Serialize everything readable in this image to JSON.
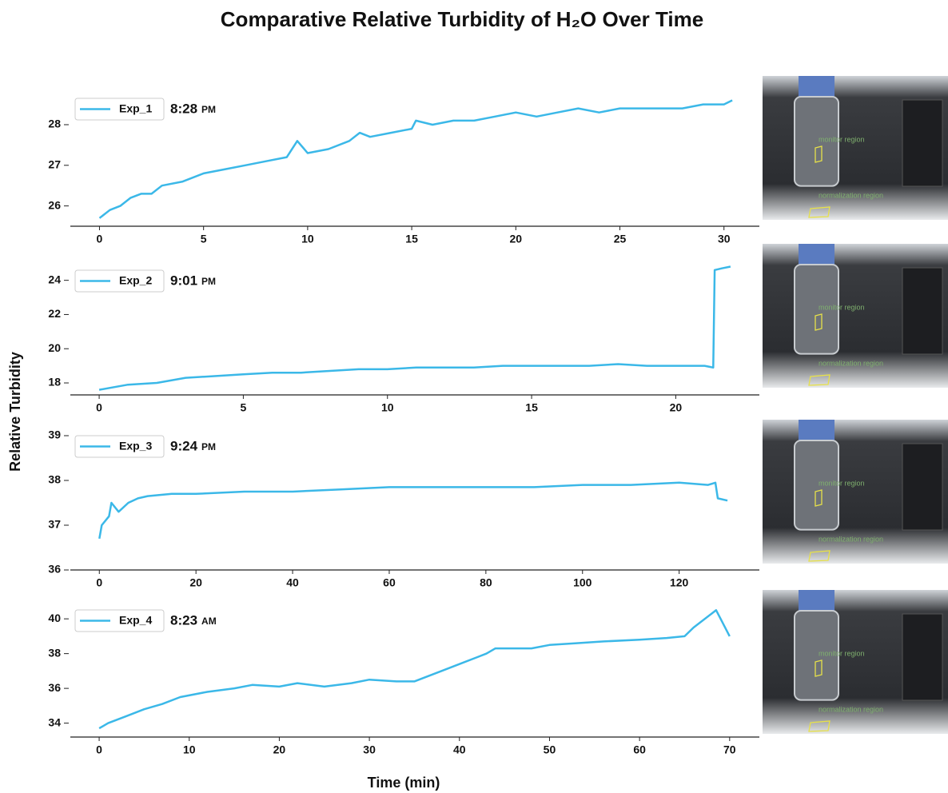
{
  "title": "Comparative Relative Turbidity of H₂O Over Time",
  "xlabel": "Time (min)",
  "ylabel": "Relative Turbidity",
  "photo_labels": {
    "monitor": "monitor region",
    "normalization": "normalization region"
  },
  "chart_data": [
    {
      "type": "line",
      "legend": "upper left",
      "time": "8:28",
      "period": "PM",
      "x": [
        0,
        0.5,
        1,
        1.5,
        2,
        2.5,
        3,
        4,
        5,
        6,
        7,
        8,
        9,
        9.5,
        10,
        11,
        12,
        12.5,
        13,
        14,
        15,
        15.2,
        16,
        17,
        18,
        19,
        20,
        21,
        22,
        23,
        24,
        25,
        26,
        27,
        28,
        29,
        30,
        30.4
      ],
      "series": [
        {
          "name": "Exp_1",
          "color": "#3bb8e8",
          "values": [
            25.7,
            25.9,
            26.0,
            26.2,
            26.3,
            26.3,
            26.5,
            26.6,
            26.8,
            26.9,
            27.0,
            27.1,
            27.2,
            27.6,
            27.3,
            27.4,
            27.6,
            27.8,
            27.7,
            27.8,
            27.9,
            28.1,
            28.0,
            28.1,
            28.1,
            28.2,
            28.3,
            28.2,
            28.3,
            28.4,
            28.3,
            28.4,
            28.4,
            28.4,
            28.4,
            28.5,
            28.5,
            28.6
          ]
        }
      ],
      "xlim": [
        -1.4,
        31.7
      ],
      "ylim": [
        25.5,
        29.2
      ],
      "xticks": [
        0,
        5,
        10,
        15,
        20,
        25,
        30
      ],
      "yticks": [
        26,
        27,
        28
      ]
    },
    {
      "type": "line",
      "legend": "upper left",
      "time": "9:01",
      "period": "PM",
      "x": [
        0,
        1,
        2,
        3,
        4,
        5,
        6,
        7,
        8,
        9,
        10,
        11,
        12,
        13,
        14,
        15,
        16,
        17,
        18,
        19,
        20,
        21,
        21.3,
        21.35,
        21.6,
        21.9
      ],
      "series": [
        {
          "name": "Exp_2",
          "color": "#3bb8e8",
          "values": [
            17.6,
            17.9,
            18.0,
            18.3,
            18.4,
            18.5,
            18.6,
            18.6,
            18.7,
            18.8,
            18.8,
            18.9,
            18.9,
            18.9,
            19.0,
            19.0,
            19.0,
            19.0,
            19.1,
            19.0,
            19.0,
            19.0,
            18.9,
            24.6,
            24.7,
            24.8
          ]
        }
      ],
      "xlim": [
        -1.0,
        22.9
      ],
      "ylim": [
        17.3,
        25.9
      ],
      "xticks": [
        0,
        5,
        10,
        15,
        20
      ],
      "yticks": [
        18,
        20,
        22,
        24
      ]
    },
    {
      "type": "line",
      "legend": "upper left",
      "time": "9:24",
      "period": "PM",
      "x": [
        0,
        0.5,
        2,
        2.5,
        4,
        6,
        8,
        10,
        15,
        20,
        30,
        40,
        50,
        60,
        70,
        80,
        90,
        100,
        110,
        120,
        126,
        127.5,
        128,
        130
      ],
      "series": [
        {
          "name": "Exp_3",
          "color": "#3bb8e8",
          "values": [
            36.7,
            37.0,
            37.2,
            37.5,
            37.3,
            37.5,
            37.6,
            37.65,
            37.7,
            37.7,
            37.75,
            37.75,
            37.8,
            37.85,
            37.85,
            37.85,
            37.85,
            37.9,
            37.9,
            37.95,
            37.9,
            37.95,
            37.6,
            37.55
          ]
        }
      ],
      "xlim": [
        -6,
        136.6
      ],
      "ylim": [
        36,
        39.5
      ],
      "xticks": [
        0,
        20,
        40,
        60,
        80,
        100,
        120
      ],
      "yticks": [
        36,
        37,
        38,
        39
      ]
    },
    {
      "type": "line",
      "legend": "upper left",
      "time": "8:23",
      "period": "AM",
      "x": [
        0,
        1,
        3,
        5,
        7,
        9,
        12,
        15,
        17,
        20,
        22,
        25,
        28,
        30,
        33,
        35,
        38,
        40,
        42,
        43,
        44,
        46,
        48,
        50,
        53,
        56,
        60,
        63,
        65,
        66,
        68,
        68.5,
        69,
        70
      ],
      "series": [
        {
          "name": "Exp_4",
          "color": "#3bb8e8",
          "values": [
            33.7,
            34.0,
            34.4,
            34.8,
            35.1,
            35.5,
            35.8,
            36.0,
            36.2,
            36.1,
            36.3,
            36.1,
            36.3,
            36.5,
            36.4,
            36.4,
            37.0,
            37.4,
            37.8,
            38.0,
            38.3,
            38.3,
            38.3,
            38.5,
            38.6,
            38.7,
            38.8,
            38.9,
            39.0,
            39.5,
            40.3,
            40.5,
            40.0,
            39.0
          ]
        }
      ],
      "xlim": [
        -3.2,
        73.3
      ],
      "ylim": [
        33.2,
        41.8
      ],
      "xticks": [
        0,
        10,
        20,
        30,
        40,
        50,
        60,
        70
      ],
      "yticks": [
        34,
        36,
        38,
        40
      ]
    }
  ]
}
